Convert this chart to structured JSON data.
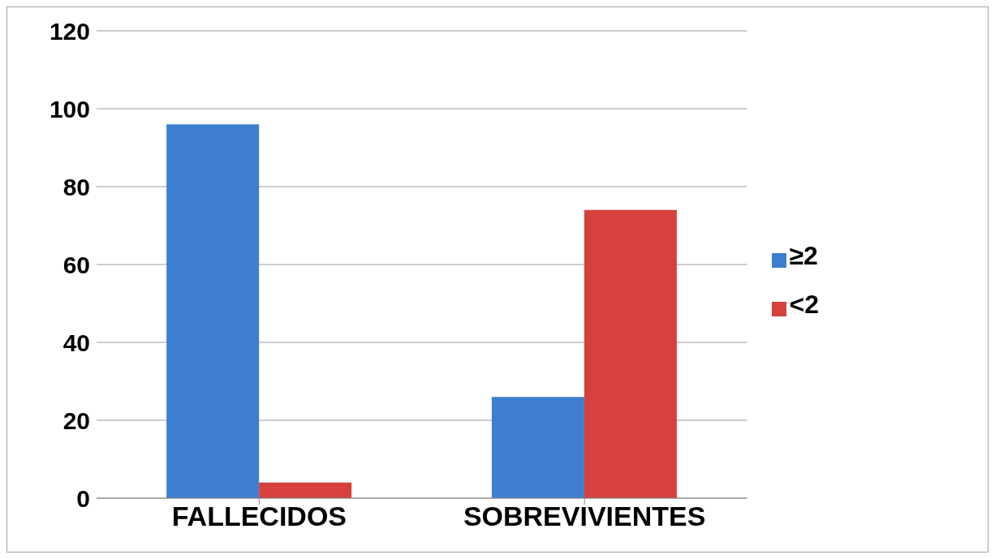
{
  "chart_data": {
    "type": "bar",
    "categories": [
      "FALLECIDOS",
      "SOBREVIVIENTES"
    ],
    "series": [
      {
        "name": "≥2",
        "color": "#3d7ed0",
        "values": [
          96,
          26
        ]
      },
      {
        "name": "<2",
        "color": "#d6403d",
        "values": [
          4,
          74
        ]
      }
    ],
    "ylim": [
      0,
      120
    ],
    "yticks": [
      0,
      20,
      40,
      60,
      80,
      100,
      120
    ],
    "grid": "y",
    "legend": "right"
  }
}
